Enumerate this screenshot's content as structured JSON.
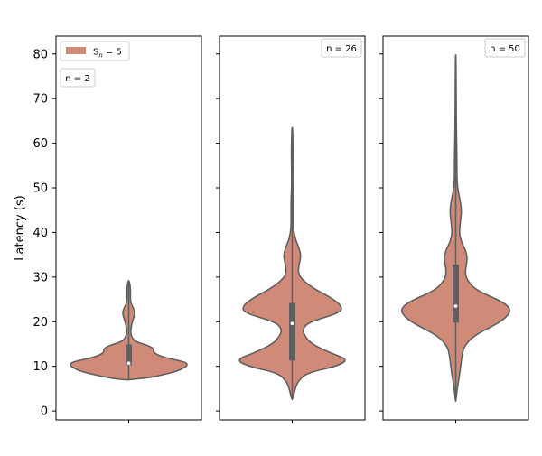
{
  "chart_data": {
    "type": "violin",
    "ylabel": "Latency (s)",
    "ylim": [
      -2,
      84
    ],
    "yticks": [
      0,
      10,
      20,
      30,
      40,
      50,
      60,
      70,
      80
    ],
    "shared_y": true,
    "grid": false,
    "colors": {
      "violin_fill": "#cf8b77",
      "violin_edge": "#5f5f5f",
      "box": "#5f5f5f",
      "median": "#ffffff"
    },
    "legend": {
      "series": "S$_n$ = 5",
      "label_base": "S",
      "label_sub": "n",
      "label_rest": " = 5",
      "placement": "top-left"
    },
    "panels": [
      {
        "label": "n = 2",
        "label_placement": "top-left",
        "min": 7.0,
        "q1": 10.3,
        "median": 10.7,
        "q3": 14.9,
        "max": 29.2,
        "density": [
          [
            7.0,
            0.15
          ],
          [
            8.0,
            0.55
          ],
          [
            9.0,
            0.85
          ],
          [
            10.0,
            0.98
          ],
          [
            10.5,
            1.0
          ],
          [
            11.0,
            0.95
          ],
          [
            12.0,
            0.6
          ],
          [
            13.0,
            0.42
          ],
          [
            14.0,
            0.43
          ],
          [
            14.8,
            0.3
          ],
          [
            15.5,
            0.12
          ],
          [
            16.5,
            0.05
          ],
          [
            18.0,
            0.03
          ],
          [
            20.0,
            0.06
          ],
          [
            21.5,
            0.1
          ],
          [
            22.5,
            0.1
          ],
          [
            23.5,
            0.06
          ],
          [
            24.5,
            0.03
          ],
          [
            26.0,
            0.03
          ],
          [
            27.5,
            0.03
          ],
          [
            29.2,
            0.01
          ]
        ]
      },
      {
        "label": "n = 26",
        "label_placement": "top-right",
        "min": 2.6,
        "q1": 11.3,
        "median": 19.6,
        "q3": 24.2,
        "max": 63.5,
        "density": [
          [
            2.6,
            0.01
          ],
          [
            4.5,
            0.04
          ],
          [
            6.5,
            0.09
          ],
          [
            8.5,
            0.24
          ],
          [
            10.0,
            0.75
          ],
          [
            11.5,
            0.96
          ],
          [
            13.0,
            0.65
          ],
          [
            15.0,
            0.33
          ],
          [
            17.0,
            0.2
          ],
          [
            18.5,
            0.18
          ],
          [
            20.0,
            0.3
          ],
          [
            22.0,
            0.82
          ],
          [
            23.5,
            0.85
          ],
          [
            25.5,
            0.65
          ],
          [
            27.5,
            0.35
          ],
          [
            30.0,
            0.12
          ],
          [
            32.0,
            0.1
          ],
          [
            34.5,
            0.15
          ],
          [
            36.5,
            0.12
          ],
          [
            38.5,
            0.05
          ],
          [
            41.0,
            0.02
          ],
          [
            44.0,
            0.02
          ],
          [
            47.5,
            0.02
          ],
          [
            50.0,
            0.01
          ],
          [
            54.0,
            0.01
          ],
          [
            58.0,
            0.015
          ],
          [
            61.0,
            0.01
          ],
          [
            63.5,
            0.005
          ]
        ]
      },
      {
        "label": "n = 50",
        "label_placement": "top-right",
        "min": 2.2,
        "q1": 19.8,
        "median": 23.5,
        "q3": 32.8,
        "max": 79.8,
        "density": [
          [
            2.2,
            0.005
          ],
          [
            4.5,
            0.02
          ],
          [
            7.0,
            0.05
          ],
          [
            9.5,
            0.08
          ],
          [
            12.0,
            0.1
          ],
          [
            14.5,
            0.14
          ],
          [
            17.0,
            0.32
          ],
          [
            20.0,
            0.78
          ],
          [
            22.5,
            0.96
          ],
          [
            24.5,
            0.8
          ],
          [
            27.0,
            0.35
          ],
          [
            29.5,
            0.18
          ],
          [
            31.5,
            0.16
          ],
          [
            34.0,
            0.2
          ],
          [
            36.0,
            0.17
          ],
          [
            38.0,
            0.09
          ],
          [
            40.0,
            0.06
          ],
          [
            42.5,
            0.08
          ],
          [
            45.0,
            0.1
          ],
          [
            47.5,
            0.07
          ],
          [
            50.0,
            0.03
          ],
          [
            53.0,
            0.02
          ],
          [
            57.0,
            0.02
          ],
          [
            60.0,
            0.015
          ],
          [
            65.0,
            0.01
          ],
          [
            70.0,
            0.008
          ],
          [
            75.0,
            0.007
          ],
          [
            79.8,
            0.003
          ]
        ]
      }
    ]
  }
}
